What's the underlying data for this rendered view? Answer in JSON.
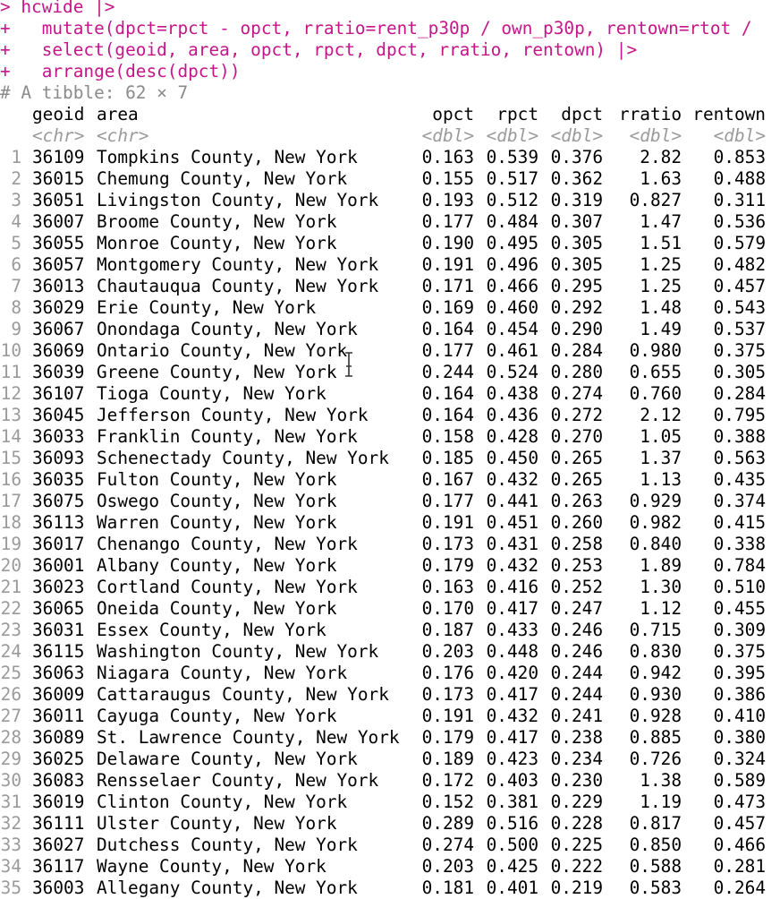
{
  "console": {
    "prompt_line": "> hcwide |>",
    "continuation_lines": [
      "+   mutate(dpct=rpct - opct, rratio=rent_p30p / own_p30p, rentown=rtot /",
      "+   select(geoid, area, opct, rpct, dpct, rratio, rentown) |>",
      "+   arrange(desc(dpct))"
    ],
    "tibble_comment": "# A tibble: 62 × 7"
  },
  "table": {
    "columns": [
      "geoid",
      "area",
      "opct",
      "rpct",
      "dpct",
      "rratio",
      "rentown"
    ],
    "types": [
      "<chr>",
      "<chr>",
      "<dbl>",
      "<dbl>",
      "<dbl>",
      "<dbl>",
      "<dbl>"
    ],
    "rows": [
      [
        "1",
        "36109",
        "Tompkins County, New York",
        "0.163",
        "0.539",
        "0.376",
        "2.82",
        "0.853"
      ],
      [
        "2",
        "36015",
        "Chemung County, New York",
        "0.155",
        "0.517",
        "0.362",
        "1.63",
        "0.488"
      ],
      [
        "3",
        "36051",
        "Livingston County, New York",
        "0.193",
        "0.512",
        "0.319",
        "0.827",
        "0.311"
      ],
      [
        "4",
        "36007",
        "Broome County, New York",
        "0.177",
        "0.484",
        "0.307",
        "1.47",
        "0.536"
      ],
      [
        "5",
        "36055",
        "Monroe County, New York",
        "0.190",
        "0.495",
        "0.305",
        "1.51",
        "0.579"
      ],
      [
        "6",
        "36057",
        "Montgomery County, New York",
        "0.191",
        "0.496",
        "0.305",
        "1.25",
        "0.482"
      ],
      [
        "7",
        "36013",
        "Chautauqua County, New York",
        "0.171",
        "0.466",
        "0.295",
        "1.25",
        "0.457"
      ],
      [
        "8",
        "36029",
        "Erie County, New York",
        "0.169",
        "0.460",
        "0.292",
        "1.48",
        "0.543"
      ],
      [
        "9",
        "36067",
        "Onondaga County, New York",
        "0.164",
        "0.454",
        "0.290",
        "1.49",
        "0.537"
      ],
      [
        "10",
        "36069",
        "Ontario County, New York",
        "0.177",
        "0.461",
        "0.284",
        "0.980",
        "0.375"
      ],
      [
        "11",
        "36039",
        "Greene County, New York",
        "0.244",
        "0.524",
        "0.280",
        "0.655",
        "0.305"
      ],
      [
        "12",
        "36107",
        "Tioga County, New York",
        "0.164",
        "0.438",
        "0.274",
        "0.760",
        "0.284"
      ],
      [
        "13",
        "36045",
        "Jefferson County, New York",
        "0.164",
        "0.436",
        "0.272",
        "2.12",
        "0.795"
      ],
      [
        "14",
        "36033",
        "Franklin County, New York",
        "0.158",
        "0.428",
        "0.270",
        "1.05",
        "0.388"
      ],
      [
        "15",
        "36093",
        "Schenectady County, New York",
        "0.185",
        "0.450",
        "0.265",
        "1.37",
        "0.563"
      ],
      [
        "16",
        "36035",
        "Fulton County, New York",
        "0.167",
        "0.432",
        "0.265",
        "1.13",
        "0.435"
      ],
      [
        "17",
        "36075",
        "Oswego County, New York",
        "0.177",
        "0.441",
        "0.263",
        "0.929",
        "0.374"
      ],
      [
        "18",
        "36113",
        "Warren County, New York",
        "0.191",
        "0.451",
        "0.260",
        "0.982",
        "0.415"
      ],
      [
        "19",
        "36017",
        "Chenango County, New York",
        "0.173",
        "0.431",
        "0.258",
        "0.840",
        "0.338"
      ],
      [
        "20",
        "36001",
        "Albany County, New York",
        "0.179",
        "0.432",
        "0.253",
        "1.89",
        "0.784"
      ],
      [
        "21",
        "36023",
        "Cortland County, New York",
        "0.163",
        "0.416",
        "0.252",
        "1.30",
        "0.510"
      ],
      [
        "22",
        "36065",
        "Oneida County, New York",
        "0.170",
        "0.417",
        "0.247",
        "1.12",
        "0.455"
      ],
      [
        "23",
        "36031",
        "Essex County, New York",
        "0.187",
        "0.433",
        "0.246",
        "0.715",
        "0.309"
      ],
      [
        "24",
        "36115",
        "Washington County, New York",
        "0.203",
        "0.448",
        "0.246",
        "0.830",
        "0.375"
      ],
      [
        "25",
        "36063",
        "Niagara County, New York",
        "0.176",
        "0.420",
        "0.244",
        "0.942",
        "0.395"
      ],
      [
        "26",
        "36009",
        "Cattaraugus County, New York",
        "0.173",
        "0.417",
        "0.244",
        "0.930",
        "0.386"
      ],
      [
        "27",
        "36011",
        "Cayuga County, New York",
        "0.191",
        "0.432",
        "0.241",
        "0.928",
        "0.410"
      ],
      [
        "28",
        "36089",
        "St. Lawrence County, New York",
        "0.179",
        "0.417",
        "0.238",
        "0.885",
        "0.380"
      ],
      [
        "29",
        "36025",
        "Delaware County, New York",
        "0.189",
        "0.423",
        "0.234",
        "0.726",
        "0.324"
      ],
      [
        "30",
        "36083",
        "Rensselaer County, New York",
        "0.172",
        "0.403",
        "0.230",
        "1.38",
        "0.589"
      ],
      [
        "31",
        "36019",
        "Clinton County, New York",
        "0.152",
        "0.381",
        "0.229",
        "1.19",
        "0.473"
      ],
      [
        "32",
        "36111",
        "Ulster County, New York",
        "0.289",
        "0.516",
        "0.228",
        "0.817",
        "0.457"
      ],
      [
        "33",
        "36027",
        "Dutchess County, New York",
        "0.274",
        "0.500",
        "0.225",
        "0.850",
        "0.466"
      ],
      [
        "34",
        "36117",
        "Wayne County, New York",
        "0.203",
        "0.425",
        "0.222",
        "0.588",
        "0.281"
      ],
      [
        "35",
        "36003",
        "Allegany County, New York",
        "0.181",
        "0.401",
        "0.219",
        "0.583",
        "0.264"
      ]
    ]
  },
  "icons": {
    "text_cursor": "i-beam-cursor-icon"
  }
}
